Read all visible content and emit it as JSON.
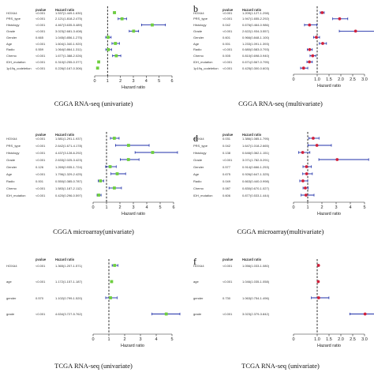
{
  "panels": [
    {
      "id": "a",
      "label": "",
      "caption": "CGGA RNA-seq (univariate)",
      "col_pvalue": "pvalue",
      "col_hr": "Hazard ratio",
      "axis_title": "Hazard ratio",
      "rows": [
        {
          "name": "HOXA4",
          "p": "<0.001",
          "hr": "1.537(1.449-1.630)"
        },
        {
          "name": "PRS_type",
          "p": "<0.001",
          "hr": "2.121(1.818-2.475)"
        },
        {
          "name": "Histology",
          "p": "<0.001",
          "hr": "4.467(3.635-5.489)"
        },
        {
          "name": "Grade",
          "p": "<0.001",
          "hr": "3.023(2.681-3.408)"
        },
        {
          "name": "Gender",
          "p": "0.665",
          "hr": "1.045(0.856-1.275)"
        },
        {
          "name": "Age",
          "p": "<0.001",
          "hr": "1.604(1.340-1.920)"
        },
        {
          "name": "Radio",
          "p": "0.559",
          "hr": "1.064(0.864-1.311)"
        },
        {
          "name": "Chemo",
          "p": "<0.001",
          "hr": "1.677(1.388-2.026)"
        },
        {
          "name": "IDH_mutation",
          "p": "<0.001",
          "hr": "0.310(0.255-0.377)"
        },
        {
          "name": "1p19q_codeletion",
          "p": "<0.001",
          "hr": "0.226(0.167-0.306)"
        }
      ],
      "ticks": [
        "0",
        "1",
        "2",
        "3",
        "4",
        "5",
        "6"
      ]
    },
    {
      "id": "b",
      "label": "b",
      "caption": "CGGA RNA-seq (multivariate)",
      "col_pvalue": "pvalue",
      "col_hr": "Hazard ratio",
      "axis_title": "Hazard ratio",
      "rows": [
        {
          "name": "HOXA4",
          "p": "<0.001",
          "hr": "1.209(1.127-1.298)"
        },
        {
          "name": "PRS_type",
          "p": "<0.001",
          "hr": "1.947(1.655-2.292)"
        },
        {
          "name": "Histology",
          "p": "0.042",
          "hr": "0.676(0.464-0.986)"
        },
        {
          "name": "Grade",
          "p": "<0.001",
          "hr": "2.622(1.934-3.557)"
        },
        {
          "name": "Gender",
          "p": "0.601",
          "hr": "0.966(0.848-1.100)"
        },
        {
          "name": "Age",
          "p": "0.001",
          "hr": "1.233(1.091-1.393)"
        },
        {
          "name": "Radio",
          "p": "<0.001",
          "hr": "0.680(0.583-0.793)"
        },
        {
          "name": "Chemo",
          "p": "0.005",
          "hr": "0.810(0.698-0.940)"
        },
        {
          "name": "IDH_mutation",
          "p": "<0.001",
          "hr": "0.671(0.567-0.795)"
        },
        {
          "name": "1p19q_codeletion",
          "p": "<0.001",
          "hr": "0.425(0.300-0.603)"
        }
      ],
      "ticks": [
        "0",
        "1.0",
        "1.5",
        "2.0",
        "2.5",
        "3.0"
      ]
    },
    {
      "id": "c",
      "label": "",
      "caption": "CGGA microarray(univariate)",
      "col_pvalue": "pvalue",
      "col_hr": "Hazard ratio",
      "axis_title": "Hazard ratio",
      "rows": [
        {
          "name": "HOXA4",
          "p": "<0.001",
          "hr": "1.581(1.291-1.937)"
        },
        {
          "name": "PRS_type",
          "p": "<0.001",
          "hr": "2.642(1.671-4.178)"
        },
        {
          "name": "Histology",
          "p": "<0.001",
          "hr": "4.437(3.128-6.292)"
        },
        {
          "name": "Grade",
          "p": "<0.001",
          "hr": "2.633(2.025-3.423)"
        },
        {
          "name": "Gender",
          "p": "0.126",
          "hr": "1.269(0.935-1.724)"
        },
        {
          "name": "Age",
          "p": "<0.001",
          "hr": "1.796(1.329-2.425)"
        },
        {
          "name": "Radio",
          "p": "0.001",
          "hr": "0.550(0.385-0.787)"
        },
        {
          "name": "Chemo",
          "p": "<0.001",
          "hr": "1.583(1.187-2.112)"
        },
        {
          "name": "IDH_mutation",
          "p": "<0.001",
          "hr": "0.420(0.296-0.597)"
        }
      ],
      "ticks": [
        "0",
        "1",
        "2",
        "3",
        "4",
        "5",
        "6"
      ]
    },
    {
      "id": "d",
      "label": "d",
      "caption": "CGGA microarray(multivariate)",
      "col_pvalue": "pvalue",
      "col_hr": "Hazard ratio",
      "axis_title": "Hazard ratio",
      "rows": [
        {
          "name": "HOXA4",
          "p": "0.031",
          "hr": "1.386(1.085-1.795)"
        },
        {
          "name": "PRS_type",
          "p": "0.042",
          "hr": "1.647(1.018-2.665)"
        },
        {
          "name": "Histology",
          "p": "0.138",
          "hr": "0.646(0.362-1.151)"
        },
        {
          "name": "Grade",
          "p": "<0.001",
          "hr": "3.071(1.782-5.291)"
        },
        {
          "name": "Gender",
          "p": "0.577",
          "hr": "0.914(0.666-1.253)"
        },
        {
          "name": "Age",
          "p": "0.675",
          "hr": "0.926(0.647-1.325)"
        },
        {
          "name": "Radio",
          "p": "0.049",
          "hr": "0.663(0.440-0.998)"
        },
        {
          "name": "Chemo",
          "p": "0.087",
          "hr": "0.830(0.670-1.027)"
        },
        {
          "name": "IDH_mutation",
          "p": "0.606",
          "hr": "0.877(0.533-1.444)"
        }
      ],
      "ticks": [
        "0",
        "1",
        "2",
        "3",
        "4",
        "5"
      ]
    },
    {
      "id": "e",
      "label": "",
      "caption": "TCGA RNA-seq (univariate)",
      "col_pvalue": "pvalue",
      "col_hr": "Hazard ratio",
      "axis_title": "Hazard ratio",
      "rows": [
        {
          "name": "HOXA4",
          "p": "<0.001",
          "hr": "1.365(1.207-1.571)"
        },
        {
          "name": "age",
          "p": "<0.001",
          "hr": "1.172(1.157-1.187)"
        },
        {
          "name": "gender",
          "p": "0.570",
          "hr": "1.102(0.799-1.520)"
        },
        {
          "name": "grade",
          "p": "<0.001",
          "hr": "4.634(3.727-5.762)"
        }
      ],
      "ticks": [
        "0",
        "1",
        "2",
        "3",
        "4",
        "5"
      ]
    },
    {
      "id": "f",
      "label": "f",
      "caption": "TCGA RNA-seq (univariate)",
      "col_pvalue": "pvalue",
      "col_hr": "Hazard ratio",
      "axis_title": "Hazard ratio",
      "rows": [
        {
          "name": "HOXA4",
          "p": "<0.001",
          "hr": "1.056(1.033-1.080)"
        },
        {
          "name": "age",
          "p": "<0.001",
          "hr": "1.046(1.035-1.058)"
        },
        {
          "name": "gender",
          "p": "0.730",
          "hr": "1.063(0.754-1.496)"
        },
        {
          "name": "grade",
          "p": "<0.001",
          "hr": "3.023(2.379-3.842)"
        }
      ],
      "ticks": [
        "0",
        "1.0",
        "1.5",
        "2.0",
        "2.5",
        "3.0"
      ]
    }
  ],
  "chart_data": [
    {
      "type": "scatter",
      "title": "CGGA RNA-seq (univariate)",
      "xlabel": "Hazard ratio",
      "xlim": [
        0,
        6
      ],
      "reference_line": 1,
      "marker_color": "#6fcf3f",
      "categories": [
        "HOXA4",
        "PRS_type",
        "Histology",
        "Grade",
        "Gender",
        "Age",
        "Radio",
        "Chemo",
        "IDH_mutation",
        "1p19q_codeletion"
      ],
      "hr": [
        1.537,
        2.121,
        4.467,
        3.023,
        1.045,
        1.604,
        1.064,
        1.677,
        0.31,
        0.226
      ],
      "lower": [
        1.449,
        1.818,
        3.635,
        2.681,
        0.856,
        1.34,
        0.864,
        1.388,
        0.255,
        0.167
      ],
      "upper": [
        1.63,
        2.475,
        5.489,
        3.408,
        1.275,
        1.92,
        1.311,
        2.026,
        0.377,
        0.306
      ]
    },
    {
      "type": "scatter",
      "title": "CGGA RNA-seq (multivariate)",
      "xlabel": "Hazard ratio",
      "xlim": [
        0,
        3
      ],
      "reference_line": 1,
      "marker_color": "#d0203a",
      "categories": [
        "HOXA4",
        "PRS_type",
        "Histology",
        "Grade",
        "Gender",
        "Age",
        "Radio",
        "Chemo",
        "IDH_mutation",
        "1p19q_codeletion"
      ],
      "hr": [
        1.209,
        1.947,
        0.676,
        2.622,
        0.966,
        1.233,
        0.68,
        0.81,
        0.671,
        0.425
      ],
      "lower": [
        1.127,
        1.655,
        0.464,
        1.934,
        0.848,
        1.091,
        0.583,
        0.698,
        0.567,
        0.3
      ],
      "upper": [
        1.298,
        2.292,
        0.986,
        3.557,
        1.1,
        1.393,
        0.793,
        0.94,
        0.795,
        0.603
      ]
    },
    {
      "type": "scatter",
      "title": "CGGA microarray(univariate)",
      "xlabel": "Hazard ratio",
      "xlim": [
        0,
        6
      ],
      "reference_line": 1,
      "marker_color": "#6fcf3f",
      "categories": [
        "HOXA4",
        "PRS_type",
        "Histology",
        "Grade",
        "Gender",
        "Age",
        "Radio",
        "Chemo",
        "IDH_mutation"
      ],
      "hr": [
        1.581,
        2.642,
        4.437,
        2.633,
        1.269,
        1.796,
        0.55,
        1.583,
        0.42
      ],
      "lower": [
        1.291,
        1.671,
        3.128,
        2.025,
        0.935,
        1.329,
        0.385,
        1.187,
        0.296
      ],
      "upper": [
        1.937,
        4.178,
        6.292,
        3.423,
        1.724,
        2.425,
        0.787,
        2.112,
        0.597
      ]
    },
    {
      "type": "scatter",
      "title": "CGGA microarray(multivariate)",
      "xlabel": "Hazard ratio",
      "xlim": [
        0,
        5
      ],
      "reference_line": 1,
      "marker_color": "#d0203a",
      "categories": [
        "HOXA4",
        "PRS_type",
        "Histology",
        "Grade",
        "Gender",
        "Age",
        "Radio",
        "Chemo",
        "IDH_mutation"
      ],
      "hr": [
        1.386,
        1.647,
        0.646,
        3.071,
        0.914,
        0.926,
        0.663,
        0.83,
        0.877
      ],
      "lower": [
        1.085,
        1.018,
        0.362,
        1.782,
        0.666,
        0.647,
        0.44,
        0.67,
        0.533
      ],
      "upper": [
        1.795,
        2.665,
        1.151,
        5.291,
        1.253,
        1.325,
        0.998,
        1.027,
        1.444
      ]
    },
    {
      "type": "scatter",
      "title": "TCGA RNA-seq (univariate)",
      "xlabel": "Hazard ratio",
      "xlim": [
        0,
        5
      ],
      "reference_line": 1,
      "marker_color": "#6fcf3f",
      "categories": [
        "HOXA4",
        "age",
        "gender",
        "grade"
      ],
      "hr": [
        1.365,
        1.172,
        1.102,
        4.634
      ],
      "lower": [
        1.207,
        1.157,
        0.799,
        3.727
      ],
      "upper": [
        1.571,
        1.187,
        1.52,
        5.762
      ]
    },
    {
      "type": "scatter",
      "title": "TCGA RNA-seq (univariate)",
      "xlabel": "Hazard ratio",
      "xlim": [
        0,
        3
      ],
      "reference_line": 1,
      "marker_color": "#d0203a",
      "categories": [
        "HOXA4",
        "age",
        "gender",
        "grade"
      ],
      "hr": [
        1.056,
        1.046,
        1.063,
        3.023
      ],
      "lower": [
        1.033,
        1.035,
        0.754,
        2.379
      ],
      "upper": [
        1.08,
        1.058,
        1.496,
        3.842
      ]
    }
  ]
}
